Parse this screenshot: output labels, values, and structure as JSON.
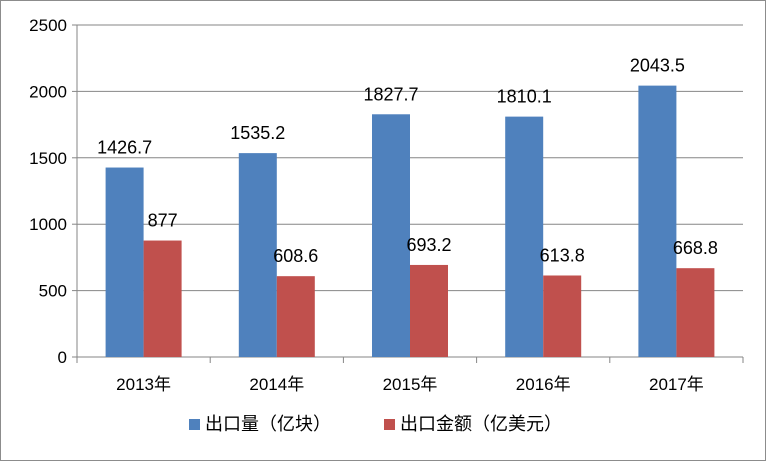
{
  "chart_data": {
    "type": "bar",
    "categories": [
      "2013年",
      "2014年",
      "2015年",
      "2016年",
      "2017年"
    ],
    "series": [
      {
        "name": "出口量（亿块）",
        "color": "#4f81bd",
        "values": [
          1426.7,
          1535.2,
          1827.7,
          1810.1,
          2043.5
        ],
        "labels": [
          "1426.7",
          "1535.2",
          "1827.7",
          "1810.1",
          "2043.5"
        ]
      },
      {
        "name": "出口金额（亿美元）",
        "color": "#c0504d",
        "values": [
          877,
          608.6,
          693.2,
          613.8,
          668.8
        ],
        "labels": [
          "877",
          "608.6",
          "693.2",
          "613.8",
          "668.8"
        ]
      }
    ],
    "yticks": [
      "0",
      "500",
      "1000",
      "1500",
      "2000",
      "2500"
    ],
    "ylim": [
      0,
      2500
    ],
    "grid": true,
    "legend_position": "bottom"
  }
}
